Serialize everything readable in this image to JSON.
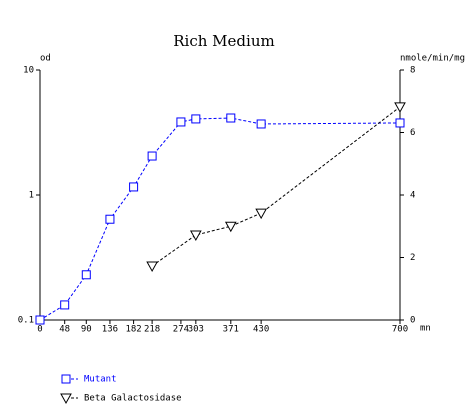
{
  "chart_data": {
    "type": "line",
    "title": "Rich Medium",
    "x_label": "mn",
    "y_label": "od",
    "y2_label": "nmole/min/mg",
    "xlim": [
      0,
      700
    ],
    "xticks": [
      0,
      48,
      90,
      136,
      182,
      218,
      274,
      303,
      371,
      430,
      700
    ],
    "ylim": [
      0.1,
      10
    ],
    "yticks": [
      0.1,
      1,
      10
    ],
    "y_log_scale": true,
    "y2lim": [
      0,
      8
    ],
    "y2ticks": [
      0,
      2,
      4,
      6,
      8
    ],
    "legend": "bottom-left",
    "series": [
      {
        "name": "Mutant",
        "color": "#0000ff",
        "marker": "square",
        "x": [
          0,
          48,
          90,
          136,
          182,
          218,
          274,
          303,
          371,
          430,
          700
        ],
        "values": [
          0.1,
          0.132,
          0.23,
          0.64,
          1.16,
          2.05,
          3.84,
          4.06,
          4.13,
          3.7,
          3.77
        ]
      },
      {
        "name": "Beta Galactosidase",
        "color": "#000000",
        "marker": "triangle-down",
        "axis": "y2",
        "x": [
          218,
          303,
          371,
          430,
          700
        ],
        "values": [
          1.73,
          2.72,
          3.0,
          3.42,
          6.82
        ]
      }
    ]
  }
}
